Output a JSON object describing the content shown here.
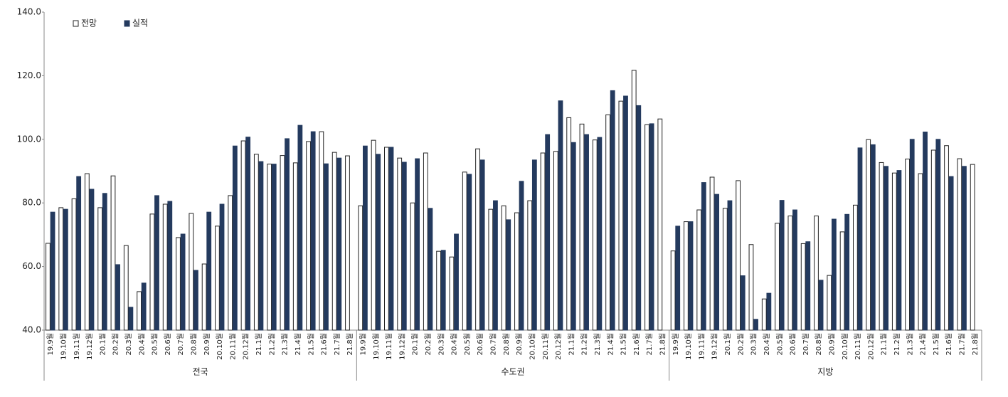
{
  "chart_data": {
    "type": "bar",
    "categories": [
      "19.9월",
      "19.10월",
      "19.11월",
      "19.12월",
      "20.1월",
      "20.2월",
      "20.3월",
      "20.4월",
      "20.5월",
      "20.6월",
      "20.7월",
      "20.8월",
      "20.9월",
      "20.10월",
      "20.11월",
      "20.12월",
      "21.1월",
      "21.2월",
      "21.3월",
      "21.4월",
      "21.5월",
      "21.6월",
      "21.7월",
      "21.8월",
      "19.9월",
      "19.10월",
      "19.11월",
      "19.12월",
      "20.1월",
      "20.2월",
      "20.3월",
      "20.4월",
      "20.5월",
      "20.6월",
      "20.7월",
      "20.8월",
      "20.9월",
      "20.10월",
      "20.11월",
      "20.12월",
      "21.1월",
      "21.2월",
      "21.3월",
      "21.4월",
      "21.5월",
      "21.6월",
      "21.7월",
      "21.8월",
      "19.9월",
      "19.10월",
      "19.11월",
      "19.12월",
      "20.1월",
      "20.2월",
      "20.3월",
      "20.4월",
      "20.5월",
      "20.6월",
      "20.7월",
      "20.8월",
      "20.9월",
      "20.10월",
      "20.11월",
      "20.12월",
      "21.1월",
      "21.2월",
      "21.3월",
      "21.4월",
      "21.5월",
      "21.6월",
      "21.7월",
      "21.8월"
    ],
    "groups": [
      "전국",
      "수도권",
      "지방"
    ],
    "series": [
      {
        "name": "전망",
        "color": "#ffffff",
        "stroke": "#222222",
        "values": [
          67.3,
          78.5,
          81.3,
          89.2,
          78.5,
          88.5,
          66.6,
          52.1,
          76.5,
          79.6,
          69.1,
          76.7,
          60.8,
          72.7,
          82.3,
          99.5,
          95.3,
          92.2,
          94.9,
          92.6,
          99.3,
          102.4,
          95.9,
          94.8,
          79.1,
          99.7,
          97.5,
          94.1,
          80.0,
          95.7,
          64.8,
          63.0,
          89.7,
          97.0,
          78.0,
          79.1,
          76.9,
          80.7,
          95.7,
          96.2,
          106.8,
          104.8,
          99.8,
          107.7,
          112.0,
          121.7,
          104.6,
          106.4,
          64.9,
          74.1,
          77.8,
          88.1,
          78.3,
          87.0,
          66.9,
          49.8,
          73.6,
          75.9,
          67.2,
          75.9,
          57.2,
          70.9,
          79.3,
          99.9,
          92.7,
          89.4,
          93.8,
          89.2,
          96.6,
          98.0,
          93.9,
          92.1
        ]
      },
      {
        "name": "실적",
        "color": "#243a5e",
        "values": [
          77.1,
          78.0,
          88.3,
          84.3,
          83.0,
          60.6,
          47.2,
          54.8,
          82.3,
          80.5,
          70.2,
          58.8,
          77.1,
          79.6,
          97.9,
          100.7,
          93.0,
          92.2,
          100.2,
          104.4,
          102.4,
          92.3,
          94.1,
          null,
          97.9,
          95.3,
          97.5,
          92.8,
          93.9,
          78.3,
          65.1,
          70.2,
          89.0,
          93.5,
          80.7,
          74.7,
          86.8,
          93.5,
          101.5,
          112.1,
          99.0,
          101.5,
          100.6,
          115.3,
          113.6,
          110.6,
          104.9,
          null,
          72.7,
          74.1,
          86.4,
          82.7,
          80.7,
          57.1,
          43.4,
          51.6,
          80.8,
          77.8,
          67.8,
          55.7,
          74.9,
          76.4,
          97.3,
          98.3,
          91.5,
          90.2,
          100.0,
          102.3,
          100.0,
          88.3,
          91.5,
          null
        ]
      }
    ],
    "ylim": [
      40,
      140
    ],
    "yticks": [
      {
        "value": 40,
        "label": "40.0"
      },
      {
        "value": 60,
        "label": "60.0"
      },
      {
        "value": 80,
        "label": "80.0"
      },
      {
        "value": 100,
        "label": "100.0"
      },
      {
        "value": 120,
        "label": "120.0"
      },
      {
        "value": 140,
        "label": "140.0"
      }
    ],
    "legend": "top-left"
  }
}
